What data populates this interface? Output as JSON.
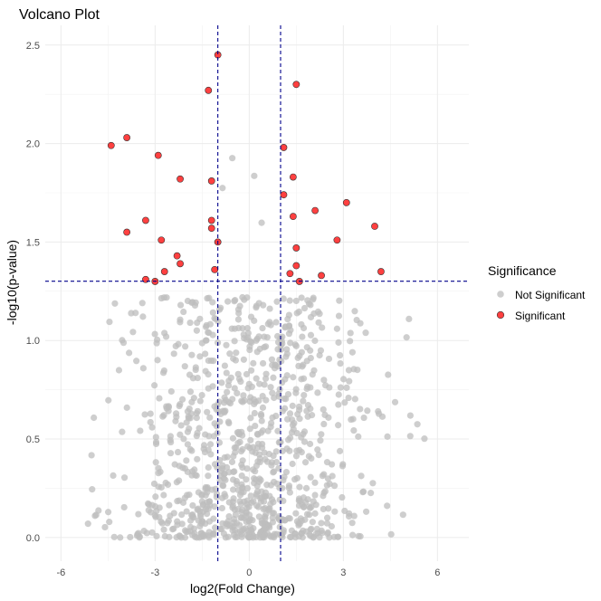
{
  "chart_data": {
    "type": "scatter",
    "title": "Volcano Plot",
    "xlabel": "log2(Fold Change)",
    "ylabel": "-log10(p-value)",
    "xlim": [
      -6.5,
      7.0
    ],
    "ylim": [
      -0.12,
      2.6
    ],
    "x_ticks": [
      -6,
      -3,
      0,
      3,
      6
    ],
    "y_ticks": [
      0.0,
      0.5,
      1.0,
      1.5,
      2.0,
      2.5
    ],
    "x_tick_labels": [
      "-6",
      "-3",
      "0",
      "3",
      "6"
    ],
    "y_tick_labels": [
      "0.0",
      "0.5",
      "1.0",
      "1.5",
      "2.0",
      "2.5"
    ],
    "grid": true,
    "thresholds": {
      "fold_change_lines": [
        -1,
        1
      ],
      "p_value_line": 1.301
    },
    "threshold_color": "#00008b",
    "legend": {
      "title": "Significance",
      "position": "right",
      "entries": [
        {
          "label": "Not Significant",
          "color": "#bebebe"
        },
        {
          "label": "Significant",
          "color": "#ff0000"
        }
      ]
    },
    "series": [
      {
        "name": "Significant",
        "color": "#ff0000",
        "points": [
          [
            -1.0,
            2.45
          ],
          [
            -1.3,
            2.27
          ],
          [
            1.5,
            2.3
          ],
          [
            -4.4,
            1.99
          ],
          [
            -3.9,
            2.03
          ],
          [
            -2.9,
            1.94
          ],
          [
            1.1,
            1.98
          ],
          [
            -2.2,
            1.82
          ],
          [
            -1.2,
            1.81
          ],
          [
            1.4,
            1.83
          ],
          [
            -3.3,
            1.61
          ],
          [
            -1.2,
            1.61
          ],
          [
            -1.2,
            1.57
          ],
          [
            1.1,
            1.74
          ],
          [
            3.1,
            1.7
          ],
          [
            2.1,
            1.66
          ],
          [
            1.4,
            1.63
          ],
          [
            4.0,
            1.58
          ],
          [
            -3.9,
            1.55
          ],
          [
            -2.8,
            1.51
          ],
          [
            -1.0,
            1.5
          ],
          [
            2.8,
            1.51
          ],
          [
            1.5,
            1.47
          ],
          [
            -2.3,
            1.43
          ],
          [
            -2.2,
            1.39
          ],
          [
            1.5,
            1.38
          ],
          [
            -1.1,
            1.36
          ],
          [
            -2.7,
            1.35
          ],
          [
            1.3,
            1.34
          ],
          [
            2.3,
            1.33
          ],
          [
            4.2,
            1.35
          ],
          [
            -3.3,
            1.31
          ],
          [
            -3.0,
            1.3
          ],
          [
            1.6,
            1.3
          ]
        ]
      },
      {
        "name": "Not Significant",
        "color": "#bebebe",
        "generated_count": 1000
      }
    ]
  }
}
